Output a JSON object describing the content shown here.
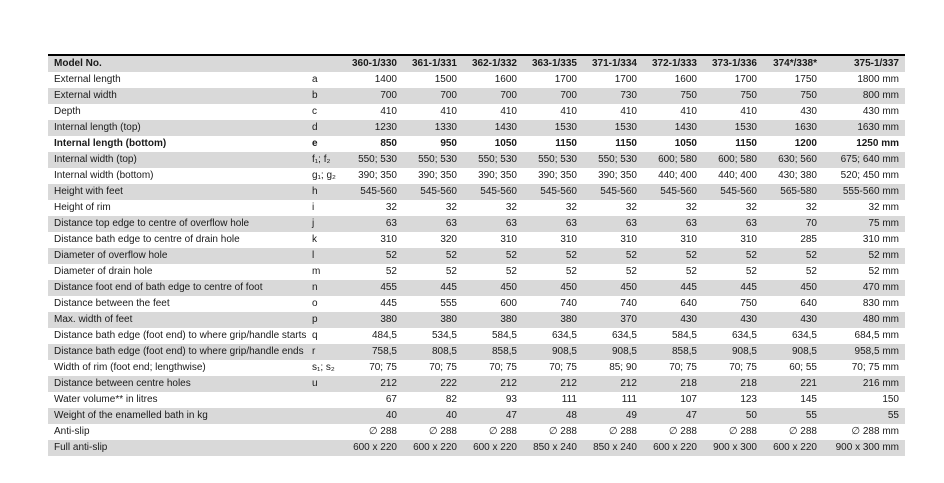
{
  "colors": {
    "stripe": "#d9d9d9",
    "top_border": "#000000",
    "text": "#1a1a1a",
    "background": "#ffffff"
  },
  "table": {
    "header": {
      "label": "Model No.",
      "code": "",
      "models": [
        "360-1/330",
        "361-1/331",
        "362-1/332",
        "363-1/335",
        "371-1/334",
        "372-1/333",
        "373-1/336",
        "374*/338*",
        "375-1/337"
      ]
    },
    "rows": [
      {
        "label": "External length",
        "code": "a",
        "bold": false,
        "values": [
          "1400",
          "1500",
          "1600",
          "1700",
          "1700",
          "1600",
          "1700",
          "1750",
          "1800 mm"
        ]
      },
      {
        "label": "External width",
        "code": "b",
        "bold": false,
        "values": [
          "700",
          "700",
          "700",
          "700",
          "730",
          "750",
          "750",
          "750",
          "800 mm"
        ]
      },
      {
        "label": "Depth",
        "code": "c",
        "bold": false,
        "values": [
          "410",
          "410",
          "410",
          "410",
          "410",
          "410",
          "410",
          "430",
          "430 mm"
        ]
      },
      {
        "label": "Internal length (top)",
        "code": "d",
        "bold": false,
        "values": [
          "1230",
          "1330",
          "1430",
          "1530",
          "1530",
          "1430",
          "1530",
          "1630",
          "1630 mm"
        ]
      },
      {
        "label": "Internal length (bottom)",
        "code": "e",
        "bold": true,
        "values": [
          "850",
          "950",
          "1050",
          "1150",
          "1150",
          "1050",
          "1150",
          "1200",
          "1250 mm"
        ]
      },
      {
        "label": "Internal width (top)",
        "code": "f₁; f₂",
        "bold": false,
        "values": [
          "550; 530",
          "550; 530",
          "550; 530",
          "550; 530",
          "550; 530",
          "600; 580",
          "600; 580",
          "630; 560",
          "675; 640 mm"
        ]
      },
      {
        "label": "Internal width (bottom)",
        "code": "g₁; g₂",
        "bold": false,
        "values": [
          "390; 350",
          "390; 350",
          "390; 350",
          "390; 350",
          "390; 350",
          "440; 400",
          "440; 400",
          "430; 380",
          "520; 450 mm"
        ]
      },
      {
        "label": "Height with feet",
        "code": "h",
        "bold": false,
        "values": [
          "545-560",
          "545-560",
          "545-560",
          "545-560",
          "545-560",
          "545-560",
          "545-560",
          "565-580",
          "555-560 mm"
        ]
      },
      {
        "label": "Height of rim",
        "code": "i",
        "bold": false,
        "values": [
          "32",
          "32",
          "32",
          "32",
          "32",
          "32",
          "32",
          "32",
          "32 mm"
        ]
      },
      {
        "label": "Distance top edge to centre of overflow hole",
        "code": "j",
        "bold": false,
        "values": [
          "63",
          "63",
          "63",
          "63",
          "63",
          "63",
          "63",
          "70",
          "75 mm"
        ]
      },
      {
        "label": "Distance bath edge to centre of drain hole",
        "code": "k",
        "bold": false,
        "values": [
          "310",
          "320",
          "310",
          "310",
          "310",
          "310",
          "310",
          "285",
          "310 mm"
        ]
      },
      {
        "label": "Diameter of overflow hole",
        "code": "l",
        "bold": false,
        "values": [
          "52",
          "52",
          "52",
          "52",
          "52",
          "52",
          "52",
          "52",
          "52 mm"
        ]
      },
      {
        "label": "Diameter of drain hole",
        "code": "m",
        "bold": false,
        "values": [
          "52",
          "52",
          "52",
          "52",
          "52",
          "52",
          "52",
          "52",
          "52 mm"
        ]
      },
      {
        "label": "Distance foot end of bath edge to centre of foot",
        "code": "n",
        "bold": false,
        "values": [
          "455",
          "445",
          "450",
          "450",
          "450",
          "445",
          "445",
          "450",
          "470 mm"
        ]
      },
      {
        "label": "Distance between the feet",
        "code": "o",
        "bold": false,
        "values": [
          "445",
          "555",
          "600",
          "740",
          "740",
          "640",
          "750",
          "640",
          "830 mm"
        ]
      },
      {
        "label": "Max. width of feet",
        "code": "p",
        "bold": false,
        "values": [
          "380",
          "380",
          "380",
          "380",
          "370",
          "430",
          "430",
          "430",
          "480 mm"
        ]
      },
      {
        "label": "Distance bath edge (foot end) to where grip/handle starts",
        "code": "q",
        "bold": false,
        "values": [
          "484,5",
          "534,5",
          "584,5",
          "634,5",
          "634,5",
          "584,5",
          "634,5",
          "634,5",
          "684,5 mm"
        ]
      },
      {
        "label": "Distance bath edge (foot end) to where grip/handle ends",
        "code": "r",
        "bold": false,
        "values": [
          "758,5",
          "808,5",
          "858,5",
          "908,5",
          "908,5",
          "858,5",
          "908,5",
          "908,5",
          "958,5 mm"
        ]
      },
      {
        "label": "Width of rim (foot end; lengthwise)",
        "code": "s₁; s₂",
        "bold": false,
        "values": [
          "70; 75",
          "70; 75",
          "70; 75",
          "70; 75",
          "85; 90",
          "70; 75",
          "70; 75",
          "60; 55",
          "70; 75 mm"
        ]
      },
      {
        "label": "Distance between centre holes",
        "code": "u",
        "bold": false,
        "values": [
          "212",
          "222",
          "212",
          "212",
          "212",
          "218",
          "218",
          "221",
          "216 mm"
        ]
      },
      {
        "label": "Water volume** in litres",
        "code": "",
        "bold": false,
        "values": [
          "67",
          "82",
          "93",
          "111",
          "111",
          "107",
          "123",
          "145",
          "150"
        ]
      },
      {
        "label": "Weight of the enamelled bath in kg",
        "code": "",
        "bold": false,
        "values": [
          "40",
          "40",
          "47",
          "48",
          "49",
          "47",
          "50",
          "55",
          "55"
        ]
      },
      {
        "label": "Anti-slip",
        "code": "",
        "bold": false,
        "values": [
          "∅ 288",
          "∅ 288",
          "∅ 288",
          "∅ 288",
          "∅ 288",
          "∅ 288",
          "∅ 288",
          "∅ 288",
          "∅ 288 mm"
        ]
      },
      {
        "label": "Full anti-slip",
        "code": "",
        "bold": false,
        "values": [
          "600 x 220",
          "600 x 220",
          "600 x 220",
          "850 x 240",
          "850 x 240",
          "600 x 220",
          "900 x 300",
          "600 x 220",
          "900 x 300 mm"
        ]
      }
    ]
  }
}
